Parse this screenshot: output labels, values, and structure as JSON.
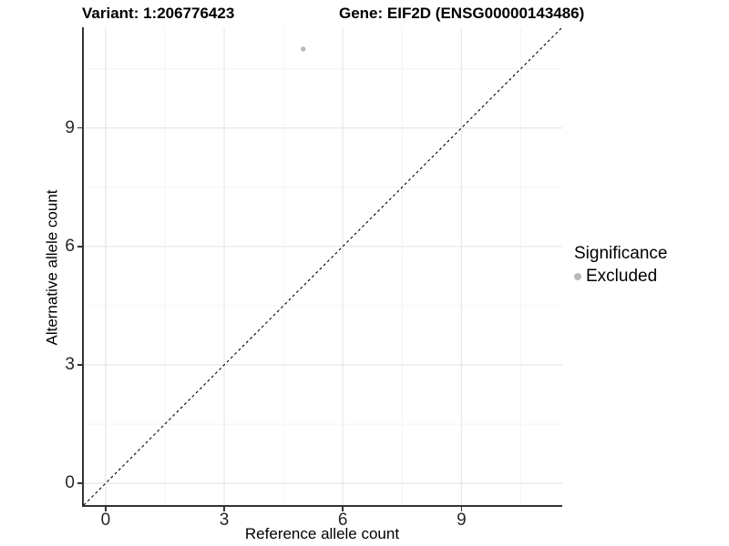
{
  "header": {
    "title_left": "Variant: 1:206776423",
    "title_right": "Gene: EIF2D (ENSG00000143486)"
  },
  "chart_data": {
    "type": "scatter",
    "title": "Variant: 1:206776423 — Gene: EIF2D (ENSG00000143486)",
    "xlabel": "Reference allele count",
    "ylabel": "Alternative allele count",
    "xlim": [
      -0.55,
      11.55
    ],
    "ylim": [
      -0.55,
      11.55
    ],
    "x_major_ticks": [
      0,
      3,
      6,
      9
    ],
    "y_major_ticks": [
      0,
      3,
      6,
      9
    ],
    "x_minor_gridlines": [
      1.5,
      4.5,
      7.5,
      10.5
    ],
    "y_minor_gridlines": [
      1.5,
      4.5,
      7.5,
      10.5
    ],
    "grid": true,
    "legend_position": "right",
    "series": [
      {
        "name": "Excluded",
        "color": "#b8b8b8",
        "point_radius": 2.7,
        "points": [
          {
            "x": 5,
            "y": 11
          }
        ]
      }
    ],
    "reference_line": {
      "kind": "identity y=x",
      "color": "#000000",
      "dash": "3,3",
      "width": 1.1
    },
    "legend": {
      "title": "Significance",
      "items": [
        {
          "label": "Excluded",
          "color": "#b8b8b8"
        }
      ]
    },
    "colors": {
      "grid_major": "#e7e7e7",
      "grid_minor": "#f3f3f3",
      "axis_line": "#333333",
      "tick_text": "#262626",
      "background": "#ffffff"
    }
  }
}
